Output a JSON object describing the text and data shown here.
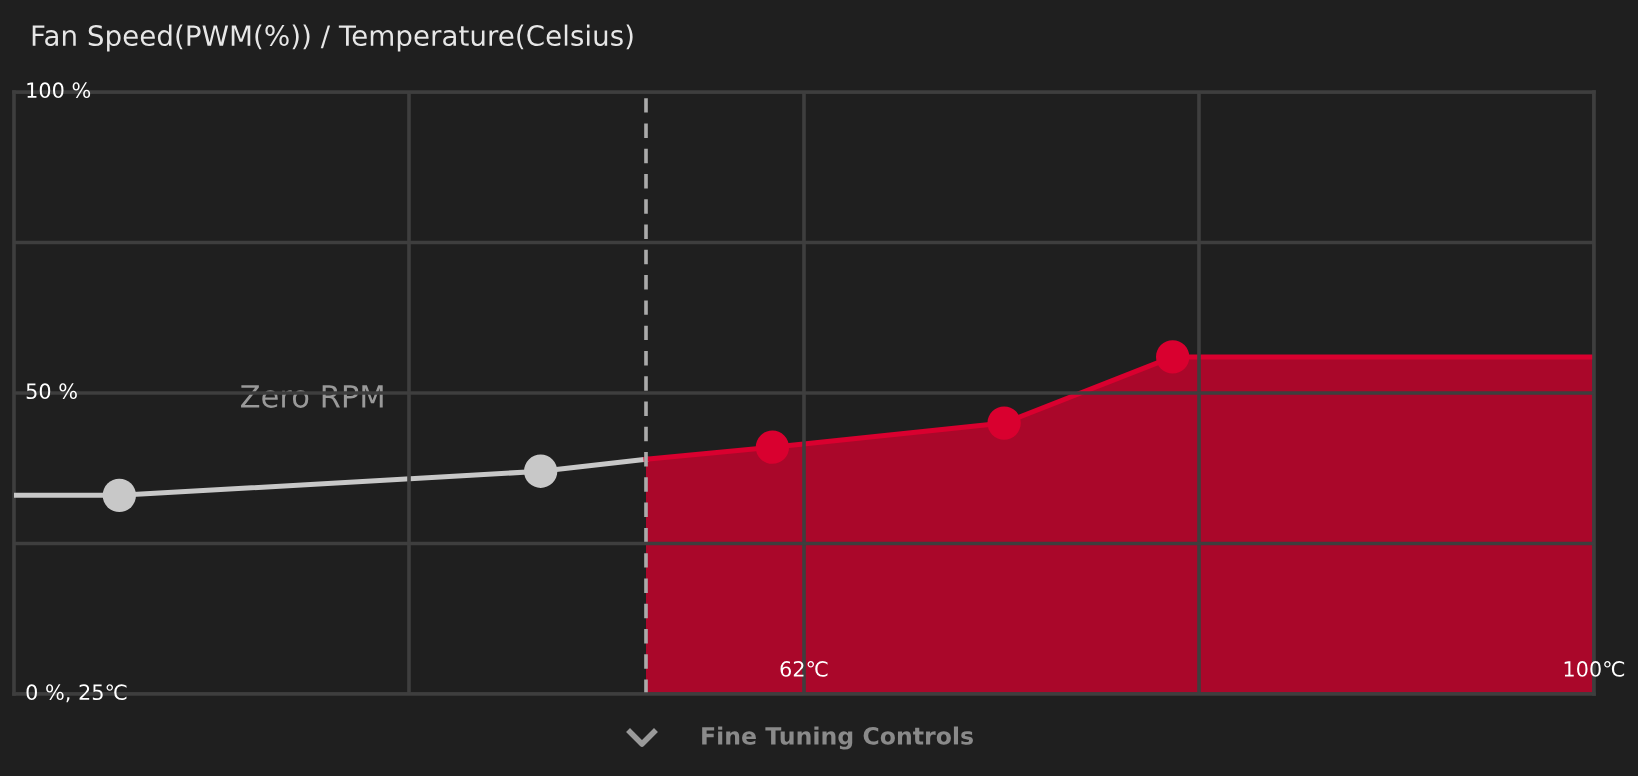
{
  "chart_data": {
    "type": "area",
    "title": "Fan Speed(PWM(%)) / Temperature(Celsius)",
    "annotations": [
      "Fine Tuning Controls"
    ],
    "series": [
      {
        "type": "line",
        "color": "#c8c8c8",
        "x": [
          25,
          30,
          50,
          55
        ],
        "values": [
          33,
          33,
          37,
          39
        ],
        "marker": "none"
      },
      {
        "type": "scatter",
        "color": "#c8c8c8",
        "x": [
          30,
          50
        ],
        "values": [
          33,
          37
        ],
        "marker": "circle"
      },
      {
        "color": "#d9002f",
        "x": [
          55,
          61,
          72,
          80,
          100
        ],
        "values": [
          39,
          41,
          45,
          56,
          56
        ],
        "marker": "none"
      },
      {
        "type": "scatter",
        "color": "#d9002f",
        "x": [
          61,
          72,
          80
        ],
        "values": [
          41,
          45,
          56
        ],
        "marker": "circle"
      }
    ],
    "ref_lines": [
      {
        "axis": "x",
        "value": 55,
        "label": "Zero RPM",
        "color": "#aaaaaa",
        "line_style": "dashed"
      }
    ],
    "xlim": [
      25,
      100
    ],
    "ylim": [
      0,
      100
    ],
    "xticks": [
      {
        "value": 43.75,
        "label": null
      },
      {
        "value": 62.5,
        "label": "62℃"
      },
      {
        "value": 81.25,
        "label": null
      },
      {
        "value": 100,
        "label": "100℃"
      }
    ],
    "yticks": [
      {
        "value": 0,
        "label": "0 %, 25℃"
      },
      {
        "value": 25,
        "label": null
      },
      {
        "value": 50,
        "label": "50 %"
      },
      {
        "value": 75,
        "label": null
      },
      {
        "value": 100,
        "label": "100 %"
      }
    ],
    "grid": true,
    "legend": false
  }
}
